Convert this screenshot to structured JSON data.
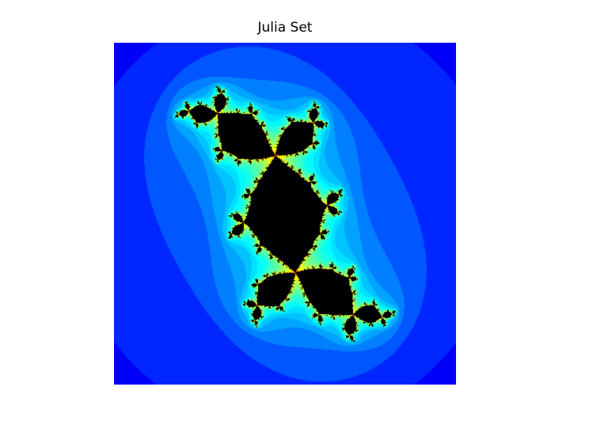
{
  "figure": {
    "title": "Julia Set"
  },
  "image": {
    "subject": "julia-set-fractal",
    "colormap": "jet",
    "interior_color": "#000000",
    "background_color": "#0000ff",
    "axes_visible": false
  }
}
